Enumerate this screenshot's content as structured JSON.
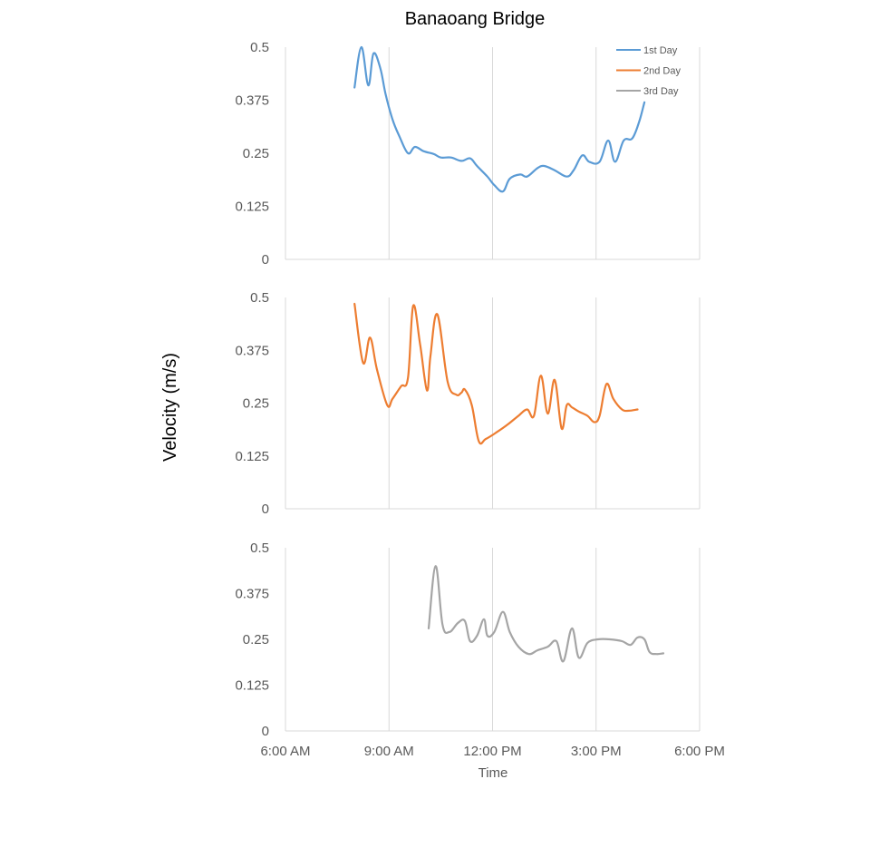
{
  "chart_data": {
    "type": "line",
    "title": "Banaoang Bridge",
    "xlabel": "Time",
    "ylabel": "Velocity (m/s)",
    "x_ticks": [
      "6:00 AM",
      "9:00 AM",
      "12:00 PM",
      "3:00 PM",
      "6:00 PM"
    ],
    "x_range_hours": [
      6,
      18
    ],
    "y_ticks": [
      "0",
      "0.125",
      "0.25",
      "0.375",
      "0.5"
    ],
    "ylim": [
      0,
      0.5
    ],
    "grid": "vertical",
    "legend_position": "top-right",
    "series": [
      {
        "name": "1st Day",
        "color": "#5B9BD5",
        "x": [
          8.0,
          8.2,
          8.4,
          8.55,
          8.75,
          8.9,
          9.1,
          9.3,
          9.55,
          9.75,
          10.0,
          10.3,
          10.5,
          10.8,
          11.1,
          11.35,
          11.55,
          11.85,
          12.05,
          12.3,
          12.5,
          12.8,
          13.0,
          13.3,
          13.5,
          13.8,
          14.15,
          14.35,
          14.6,
          14.8,
          15.1,
          15.35,
          15.55,
          15.8,
          16.05,
          16.25,
          16.4
        ],
        "y": [
          0.405,
          0.5,
          0.41,
          0.485,
          0.45,
          0.39,
          0.33,
          0.29,
          0.25,
          0.265,
          0.255,
          0.248,
          0.24,
          0.24,
          0.232,
          0.238,
          0.22,
          0.195,
          0.175,
          0.16,
          0.19,
          0.2,
          0.195,
          0.215,
          0.22,
          0.21,
          0.195,
          0.21,
          0.245,
          0.23,
          0.23,
          0.28,
          0.23,
          0.28,
          0.285,
          0.325,
          0.37
        ]
      },
      {
        "name": "2nd Day",
        "color": "#ED7D31",
        "x": [
          8.0,
          8.25,
          8.45,
          8.65,
          8.95,
          9.1,
          9.35,
          9.55,
          9.7,
          9.9,
          10.1,
          10.2,
          10.4,
          10.7,
          10.95,
          11.1,
          11.2,
          11.4,
          11.6,
          11.8,
          12.1,
          12.45,
          12.75,
          13.0,
          13.2,
          13.4,
          13.6,
          13.8,
          14.0,
          14.15,
          14.3,
          14.5,
          14.75,
          14.95,
          15.1,
          15.3,
          15.5,
          15.75,
          15.95,
          16.2
        ],
        "y": [
          0.485,
          0.345,
          0.405,
          0.33,
          0.245,
          0.26,
          0.29,
          0.31,
          0.48,
          0.39,
          0.28,
          0.36,
          0.46,
          0.3,
          0.27,
          0.275,
          0.282,
          0.245,
          0.16,
          0.165,
          0.18,
          0.2,
          0.22,
          0.235,
          0.22,
          0.315,
          0.225,
          0.305,
          0.19,
          0.245,
          0.24,
          0.23,
          0.22,
          0.205,
          0.22,
          0.295,
          0.26,
          0.235,
          0.232,
          0.235
        ]
      },
      {
        "name": "3rd Day",
        "color": "#A5A5A5",
        "x": [
          10.15,
          10.35,
          10.55,
          10.75,
          11.0,
          11.2,
          11.35,
          11.55,
          11.75,
          11.85,
          12.05,
          12.3,
          12.5,
          12.75,
          13.05,
          13.3,
          13.6,
          13.85,
          14.05,
          14.3,
          14.5,
          14.75,
          15.05,
          15.4,
          15.75,
          16.0,
          16.2,
          16.4,
          16.55,
          16.75,
          16.95
        ],
        "y": [
          0.28,
          0.45,
          0.29,
          0.27,
          0.295,
          0.3,
          0.245,
          0.26,
          0.305,
          0.26,
          0.27,
          0.325,
          0.27,
          0.23,
          0.21,
          0.22,
          0.23,
          0.245,
          0.19,
          0.28,
          0.2,
          0.24,
          0.25,
          0.25,
          0.245,
          0.235,
          0.255,
          0.25,
          0.215,
          0.21,
          0.212
        ]
      }
    ]
  }
}
